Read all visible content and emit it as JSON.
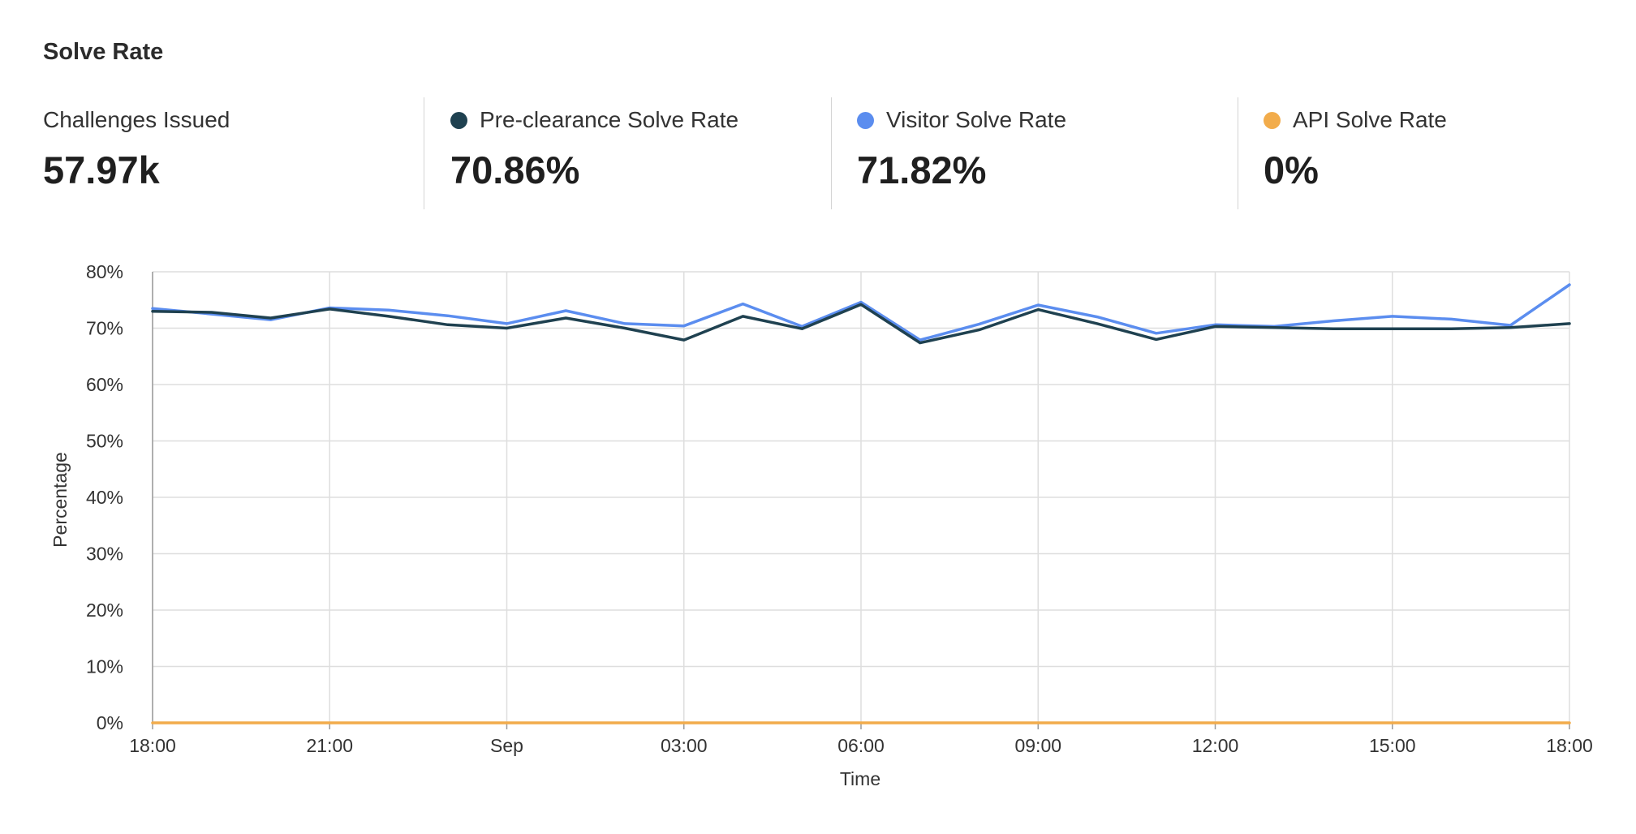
{
  "panel": {
    "title": "Solve Rate"
  },
  "stats": [
    {
      "label": "Challenges Issued",
      "value": "57.97k",
      "color": ""
    },
    {
      "label": "Pre-clearance Solve Rate",
      "value": "70.86%",
      "color": "#1f4150"
    },
    {
      "label": "Visitor Solve Rate",
      "value": "71.82%",
      "color": "#5b8def"
    },
    {
      "label": "API Solve Rate",
      "value": "0%",
      "color": "#f2ac4b"
    }
  ],
  "chart_data": {
    "type": "line",
    "title": "",
    "xlabel": "Time",
    "ylabel": "Percentage",
    "ylim": [
      0,
      80
    ],
    "yticks": [
      "0%",
      "10%",
      "20%",
      "30%",
      "40%",
      "50%",
      "60%",
      "70%",
      "80%"
    ],
    "xticks": [
      "18:00",
      "21:00",
      "Sep",
      "03:00",
      "06:00",
      "09:00",
      "12:00",
      "15:00",
      "18:00"
    ],
    "grid": true,
    "x_hours": [
      0,
      1,
      2,
      3,
      4,
      5,
      6,
      7,
      8,
      9,
      10,
      11,
      12,
      13,
      14,
      15,
      16,
      17,
      18,
      19,
      20,
      21,
      22,
      23,
      24
    ],
    "series": [
      {
        "name": "Visitor Solve Rate",
        "color": "#5b8def",
        "values": [
          73.5,
          72.5,
          71.5,
          73.6,
          73.2,
          72.2,
          70.8,
          73.1,
          70.8,
          70.4,
          74.3,
          70.3,
          74.6,
          67.9,
          70.7,
          74.1,
          72.0,
          69.1,
          70.6,
          70.3,
          71.3,
          72.1,
          71.6,
          70.5,
          77.7
        ]
      },
      {
        "name": "Pre-clearance Solve Rate",
        "color": "#1f4150",
        "values": [
          73.0,
          72.8,
          71.8,
          73.4,
          72.1,
          70.6,
          70.0,
          71.8,
          70.0,
          67.9,
          72.1,
          69.9,
          74.2,
          67.4,
          69.7,
          73.3,
          70.8,
          68.0,
          70.3,
          70.1,
          69.9,
          69.9,
          69.9,
          70.1,
          70.8
        ]
      },
      {
        "name": "API Solve Rate",
        "color": "#f2ac4b",
        "values": [
          0,
          0,
          0,
          0,
          0,
          0,
          0,
          0,
          0,
          0,
          0,
          0,
          0,
          0,
          0,
          0,
          0,
          0,
          0,
          0,
          0,
          0,
          0,
          0,
          0
        ]
      }
    ]
  }
}
